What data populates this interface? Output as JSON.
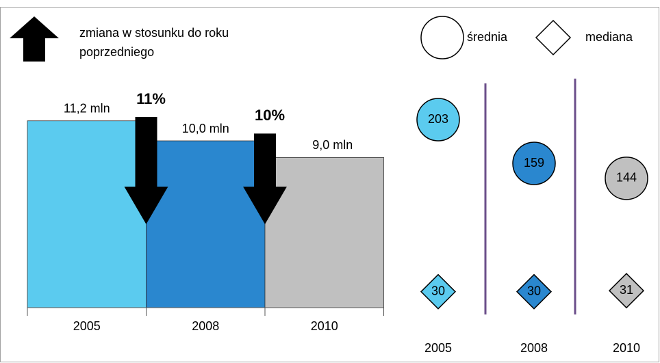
{
  "chart_data": [
    {
      "type": "bar",
      "categories": [
        "2005",
        "2008",
        "2010"
      ],
      "values": [
        11.2,
        10.0,
        9.0
      ],
      "value_labels": [
        "11,2 mln",
        "10,0 mln",
        "9,0 mln"
      ],
      "colors": [
        "#5bcbef",
        "#2a87cf",
        "#c0c0c0"
      ],
      "changes": [
        11,
        10
      ],
      "change_labels": [
        "11%",
        "10%"
      ],
      "legend": "zmiana w stosunku do roku poprzedniego"
    },
    {
      "type": "scatter",
      "categories": [
        "2005",
        "2008",
        "2010"
      ],
      "colors": [
        "#5bcbef",
        "#2a87cf",
        "#c0c0c0"
      ],
      "series": [
        {
          "name": "średnia",
          "marker": "circle",
          "values": [
            203,
            159,
            144
          ]
        },
        {
          "name": "mediana",
          "marker": "diamond",
          "values": [
            30,
            30,
            31
          ]
        }
      ]
    }
  ]
}
